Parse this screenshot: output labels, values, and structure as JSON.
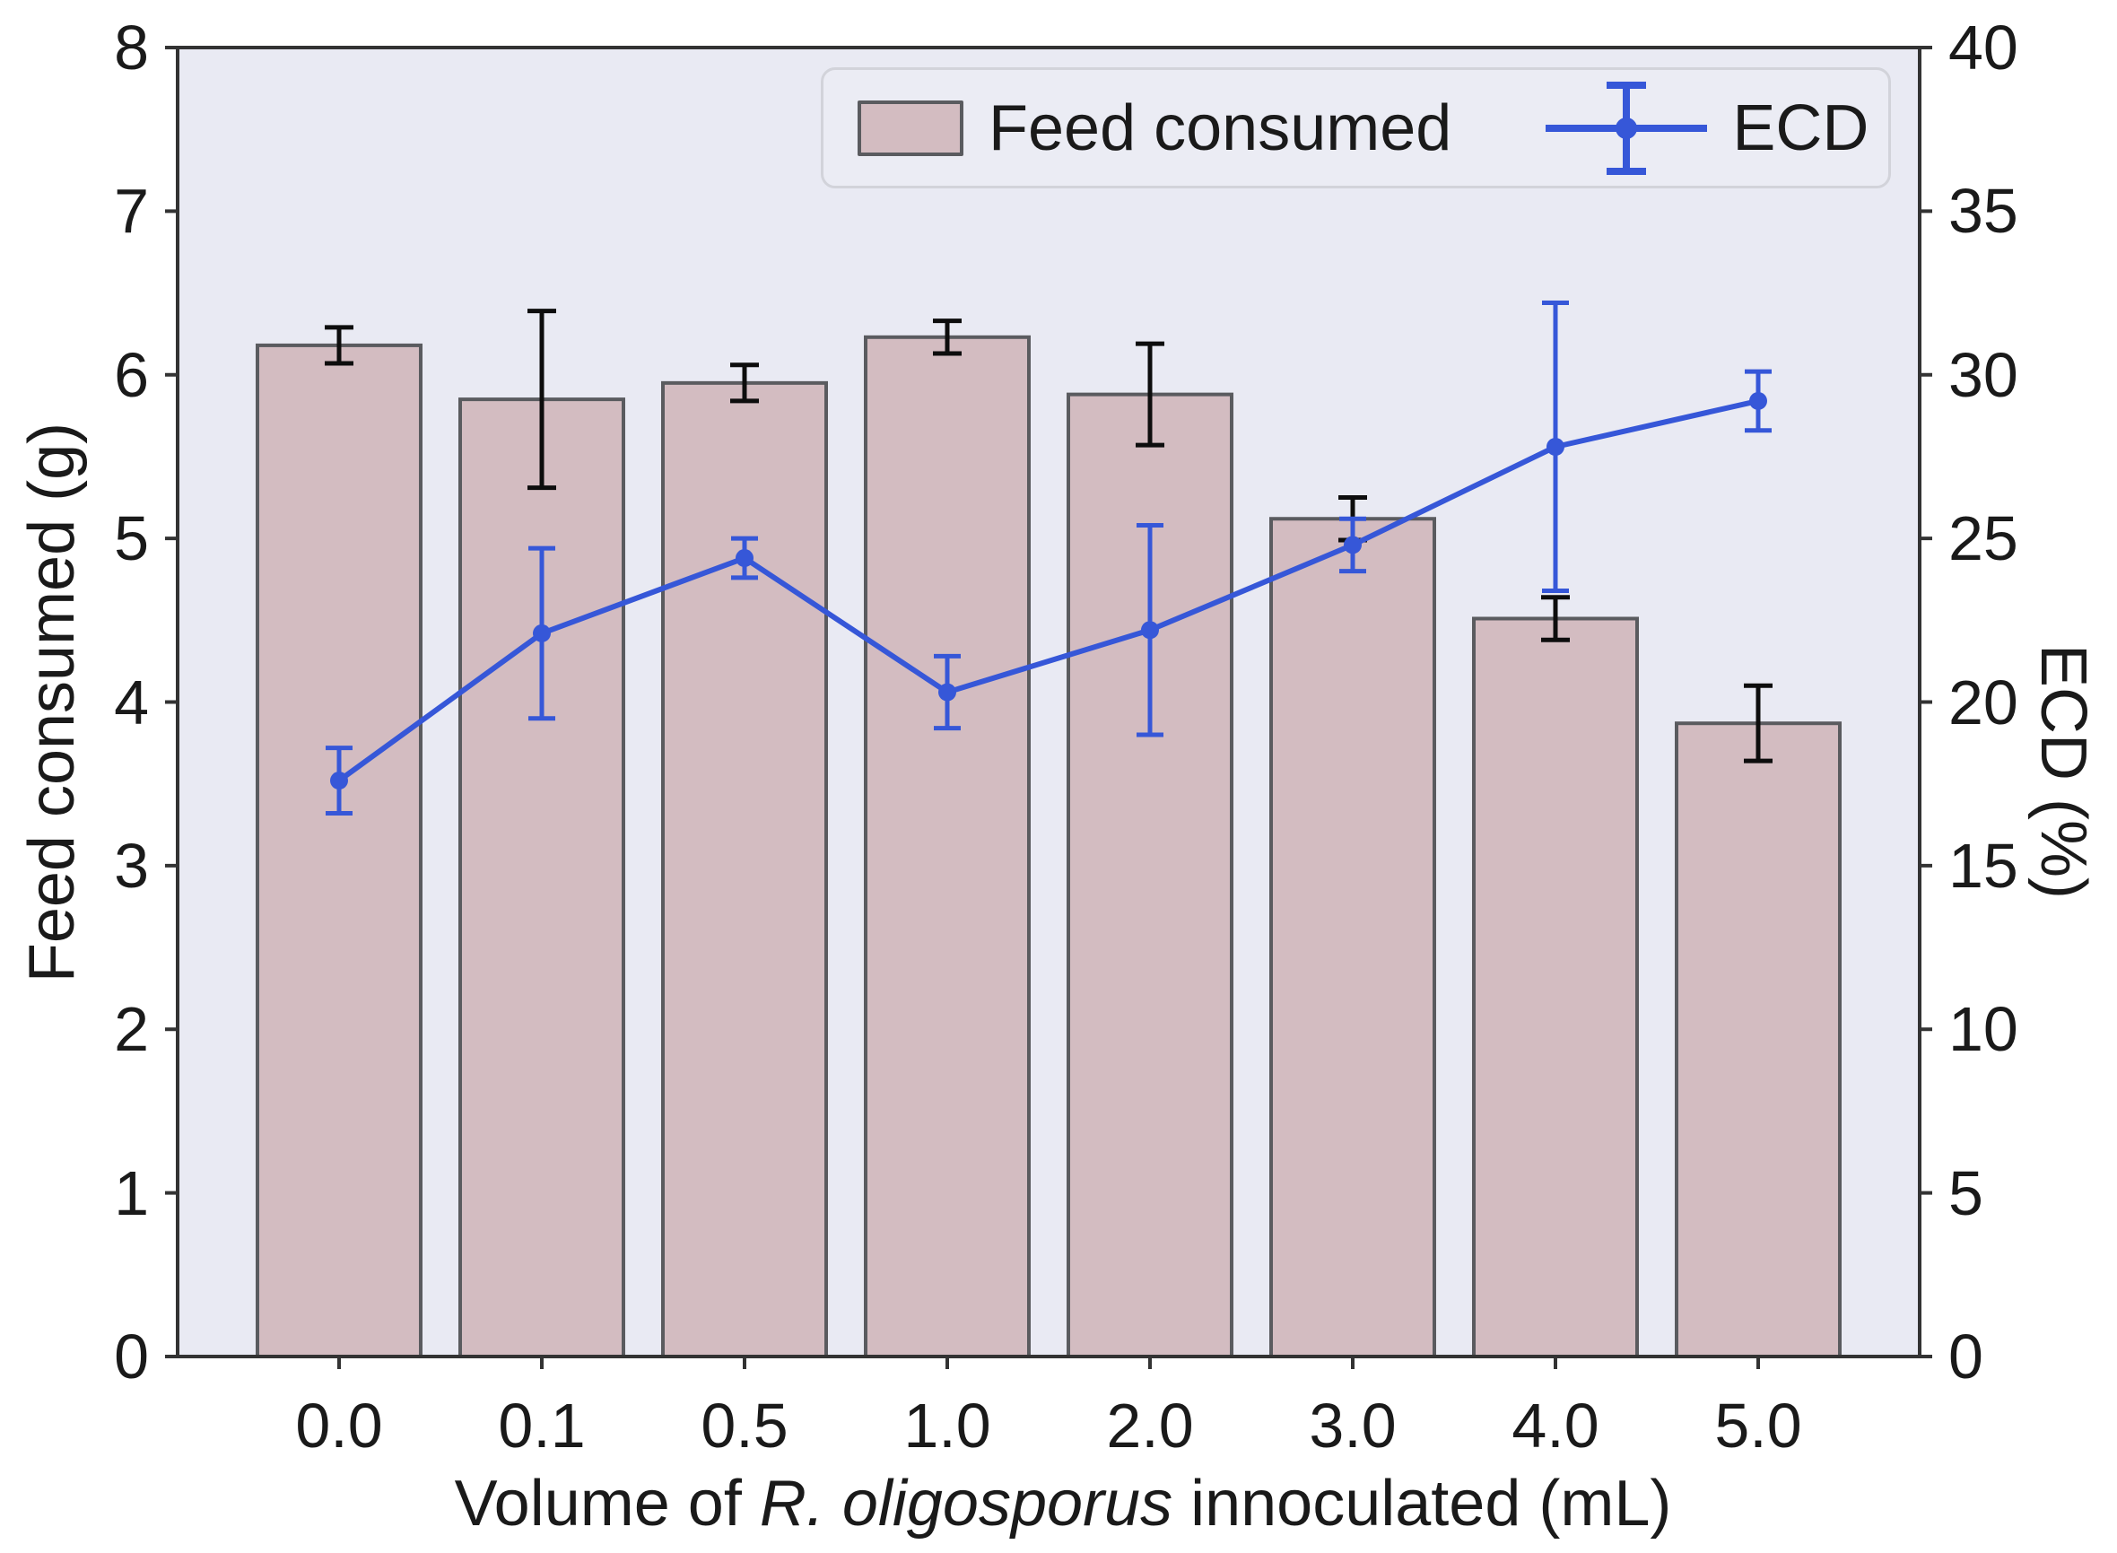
{
  "axes": {
    "left": {
      "label": "Feed consumed (g)"
    },
    "right": {
      "label": "ECD (%)"
    },
    "x": {
      "label_prefix": "Volume of ",
      "label_italic": "R. oligosporus",
      "label_suffix": " innoculated (mL)"
    }
  },
  "legend": {
    "items": [
      {
        "label": "Feed consumed",
        "marker": "bar-swatch"
      },
      {
        "label": "ECD",
        "marker": "errorbar-line-icon"
      }
    ]
  },
  "chart_data": {
    "type": "bar",
    "subtype": "dual-axis bar and line combo with error bars",
    "title": "",
    "categories": [
      "0.0",
      "0.1",
      "0.5",
      "1.0",
      "2.0",
      "3.0",
      "4.0",
      "5.0"
    ],
    "series": [
      {
        "name": "Feed consumed",
        "type": "bar",
        "axis": "left",
        "values": [
          6.18,
          5.85,
          5.95,
          6.23,
          5.88,
          5.12,
          4.51,
          3.87
        ],
        "errors": [
          0.11,
          0.54,
          0.11,
          0.1,
          0.31,
          0.13,
          0.13,
          0.23
        ]
      },
      {
        "name": "ECD",
        "type": "line",
        "axis": "right",
        "values": [
          17.6,
          22.1,
          24.4,
          20.3,
          22.2,
          24.8,
          27.8,
          29.2
        ],
        "errors": [
          1.0,
          2.6,
          0.6,
          1.1,
          3.2,
          0.8,
          4.4,
          0.9
        ]
      }
    ],
    "xlabel": "Volume of R. oligosporus innoculated (mL)",
    "ylabel_left": "Feed consumed (g)",
    "ylabel_right": "ECD (%)",
    "ylim_left": [
      0,
      8
    ],
    "ylim_right": [
      0,
      40
    ],
    "yticks_left": [
      0,
      1,
      2,
      3,
      4,
      5,
      6,
      7,
      8
    ],
    "yticks_right": [
      0,
      5,
      10,
      15,
      20,
      25,
      30,
      35,
      40
    ],
    "grid": false,
    "legend_position": "upper center",
    "colors": {
      "plot_bg": "#e9eaf3",
      "figure_bg": "#ffffff",
      "bar_fill": "#d3bcc1",
      "bar_edge": "#5a5b5f",
      "error_bar": "#0d0d0d",
      "line": "#3657d8",
      "spine": "#333333",
      "text": "#1a1a1a",
      "legend_bg": "#ebecf4",
      "legend_border": "#d2d3da"
    }
  }
}
